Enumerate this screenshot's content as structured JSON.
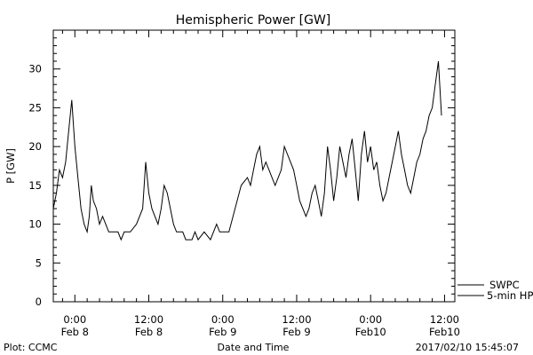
{
  "chart_data": {
    "type": "line",
    "title": "Hemispheric Power [GW]",
    "xlabel": "Date and Time",
    "ylabel": "P [GW]",
    "ylim": [
      0,
      35
    ],
    "yticks": [
      0,
      5,
      10,
      15,
      20,
      25,
      30
    ],
    "xlim": [
      "2017-02-07 20:30",
      "2017-02-10 13:40"
    ],
    "xticks": [
      {
        "time": "2017-02-08 00:00",
        "line1": "0:00",
        "line2": "Feb 8"
      },
      {
        "time": "2017-02-08 12:00",
        "line1": "12:00",
        "line2": "Feb 8"
      },
      {
        "time": "2017-02-09 00:00",
        "line1": "0:00",
        "line2": "Feb 9"
      },
      {
        "time": "2017-02-09 12:00",
        "line1": "12:00",
        "line2": "Feb 9"
      },
      {
        "time": "2017-02-10 00:00",
        "line1": "0:00",
        "line2": "Feb10"
      },
      {
        "time": "2017-02-10 12:00",
        "line1": "12:00",
        "line2": "Feb10"
      }
    ],
    "grid": false,
    "legend_position": "bottom-right",
    "series": [
      {
        "name": "SWPC",
        "values": [
          [
            "2017-02-07 20:30",
            12
          ],
          [
            "2017-02-07 21:00",
            14
          ],
          [
            "2017-02-07 21:30",
            17
          ],
          [
            "2017-02-07 22:00",
            16
          ],
          [
            "2017-02-07 22:30",
            18
          ],
          [
            "2017-02-07 23:00",
            22
          ],
          [
            "2017-02-07 23:30",
            26
          ],
          [
            "2017-02-08 00:00",
            20
          ],
          [
            "2017-02-08 00:30",
            16
          ],
          [
            "2017-02-08 01:00",
            12
          ],
          [
            "2017-02-08 01:30",
            10
          ],
          [
            "2017-02-08 02:00",
            9
          ],
          [
            "2017-02-08 02:20",
            11
          ],
          [
            "2017-02-08 02:40",
            15
          ],
          [
            "2017-02-08 03:00",
            13
          ],
          [
            "2017-02-08 03:30",
            12
          ],
          [
            "2017-02-08 04:00",
            10
          ],
          [
            "2017-02-08 04:30",
            11
          ],
          [
            "2017-02-08 05:00",
            10
          ],
          [
            "2017-02-08 05:30",
            9
          ],
          [
            "2017-02-08 07:00",
            9
          ],
          [
            "2017-02-08 07:30",
            8
          ],
          [
            "2017-02-08 08:00",
            9
          ],
          [
            "2017-02-08 09:00",
            9
          ],
          [
            "2017-02-08 10:00",
            10
          ],
          [
            "2017-02-08 11:00",
            12
          ],
          [
            "2017-02-08 11:30",
            18
          ],
          [
            "2017-02-08 12:00",
            14
          ],
          [
            "2017-02-08 12:30",
            12
          ],
          [
            "2017-02-08 13:00",
            11
          ],
          [
            "2017-02-08 13:30",
            10
          ],
          [
            "2017-02-08 14:00",
            12
          ],
          [
            "2017-02-08 14:30",
            15
          ],
          [
            "2017-02-08 15:00",
            14
          ],
          [
            "2017-02-08 15:30",
            12
          ],
          [
            "2017-02-08 16:00",
            10
          ],
          [
            "2017-02-08 16:30",
            9
          ],
          [
            "2017-02-08 17:30",
            9
          ],
          [
            "2017-02-08 18:00",
            8
          ],
          [
            "2017-02-08 19:00",
            8
          ],
          [
            "2017-02-08 19:30",
            9
          ],
          [
            "2017-02-08 20:00",
            8
          ],
          [
            "2017-02-08 21:00",
            9
          ],
          [
            "2017-02-08 22:00",
            8
          ],
          [
            "2017-02-08 23:00",
            10
          ],
          [
            "2017-02-08 23:30",
            9
          ],
          [
            "2017-02-09 01:00",
            9
          ],
          [
            "2017-02-09 02:00",
            12
          ],
          [
            "2017-02-09 03:00",
            15
          ],
          [
            "2017-02-09 04:00",
            16
          ],
          [
            "2017-02-09 04:30",
            15
          ],
          [
            "2017-02-09 05:00",
            17
          ],
          [
            "2017-02-09 05:30",
            19
          ],
          [
            "2017-02-09 06:00",
            20
          ],
          [
            "2017-02-09 06:30",
            17
          ],
          [
            "2017-02-09 07:00",
            18
          ],
          [
            "2017-02-09 07:30",
            17
          ],
          [
            "2017-02-09 08:00",
            16
          ],
          [
            "2017-02-09 08:30",
            15
          ],
          [
            "2017-02-09 09:00",
            16
          ],
          [
            "2017-02-09 09:30",
            17
          ],
          [
            "2017-02-09 10:00",
            20
          ],
          [
            "2017-02-09 10:30",
            19
          ],
          [
            "2017-02-09 11:00",
            18
          ],
          [
            "2017-02-09 11:30",
            17
          ],
          [
            "2017-02-09 12:00",
            15
          ],
          [
            "2017-02-09 12:30",
            13
          ],
          [
            "2017-02-09 13:00",
            12
          ],
          [
            "2017-02-09 13:30",
            11
          ],
          [
            "2017-02-09 14:00",
            12
          ],
          [
            "2017-02-09 14:30",
            14
          ],
          [
            "2017-02-09 15:00",
            15
          ],
          [
            "2017-02-09 15:30",
            13
          ],
          [
            "2017-02-09 16:00",
            11
          ],
          [
            "2017-02-09 16:30",
            14
          ],
          [
            "2017-02-09 17:00",
            20
          ],
          [
            "2017-02-09 17:30",
            17
          ],
          [
            "2017-02-09 18:00",
            13
          ],
          [
            "2017-02-09 18:30",
            16
          ],
          [
            "2017-02-09 19:00",
            20
          ],
          [
            "2017-02-09 19:30",
            18
          ],
          [
            "2017-02-09 20:00",
            16
          ],
          [
            "2017-02-09 20:30",
            19
          ],
          [
            "2017-02-09 21:00",
            21
          ],
          [
            "2017-02-09 21:30",
            17
          ],
          [
            "2017-02-09 22:00",
            13
          ],
          [
            "2017-02-09 22:30",
            19
          ],
          [
            "2017-02-09 23:00",
            22
          ],
          [
            "2017-02-09 23:30",
            18
          ],
          [
            "2017-02-10 00:00",
            20
          ],
          [
            "2017-02-10 00:30",
            17
          ],
          [
            "2017-02-10 01:00",
            18
          ],
          [
            "2017-02-10 01:30",
            15
          ],
          [
            "2017-02-10 02:00",
            13
          ],
          [
            "2017-02-10 02:30",
            14
          ],
          [
            "2017-02-10 03:00",
            16
          ],
          [
            "2017-02-10 03:30",
            18
          ],
          [
            "2017-02-10 04:00",
            20
          ],
          [
            "2017-02-10 04:30",
            22
          ],
          [
            "2017-02-10 05:00",
            19
          ],
          [
            "2017-02-10 05:30",
            17
          ],
          [
            "2017-02-10 06:00",
            15
          ],
          [
            "2017-02-10 06:30",
            14
          ],
          [
            "2017-02-10 07:00",
            16
          ],
          [
            "2017-02-10 07:30",
            18
          ],
          [
            "2017-02-10 08:00",
            19
          ],
          [
            "2017-02-10 08:30",
            21
          ],
          [
            "2017-02-10 09:00",
            22
          ],
          [
            "2017-02-10 09:30",
            24
          ],
          [
            "2017-02-10 10:00",
            25
          ],
          [
            "2017-02-10 10:30",
            28
          ],
          [
            "2017-02-10 11:00",
            31
          ],
          [
            "2017-02-10 11:30",
            24
          ]
        ]
      },
      {
        "name": "5-min HPI",
        "values": []
      }
    ],
    "legend": [
      "SWPC",
      "5-min HPI"
    ]
  },
  "footer": {
    "left": "Plot: CCMC",
    "center": "Date and Time",
    "right": "2017/02/10 15:45:07"
  }
}
